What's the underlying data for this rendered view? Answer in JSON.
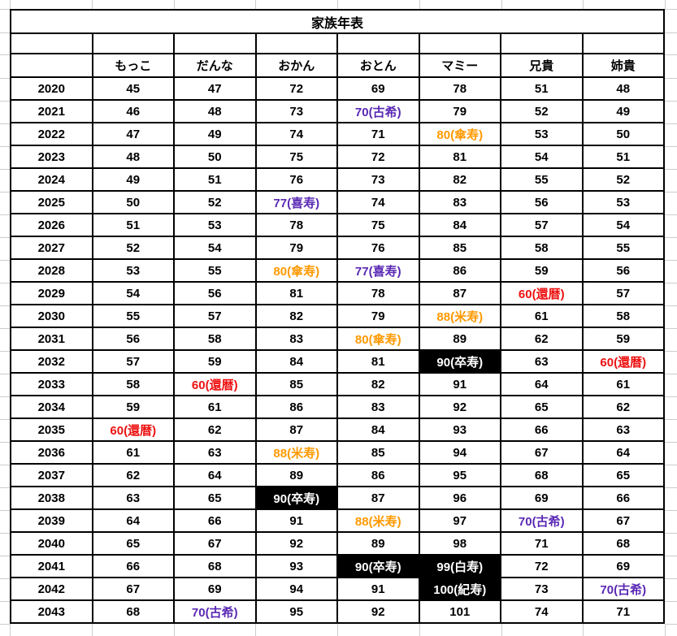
{
  "title": "家族年表",
  "columns": [
    "もっこ",
    "だんな",
    "おかん",
    "おとん",
    "マミー",
    "兄貴",
    "姉貴"
  ],
  "rows": [
    {
      "year": "2020",
      "cells": [
        "45",
        "47",
        "72",
        "69",
        "78",
        "51",
        "48"
      ]
    },
    {
      "year": "2021",
      "cells": [
        "46",
        "48",
        "73",
        {
          "t": "70(古希)",
          "s": "purple"
        },
        "79",
        "52",
        "49"
      ]
    },
    {
      "year": "2022",
      "cells": [
        "47",
        "49",
        "74",
        "71",
        {
          "t": "80(傘寿)",
          "s": "orange"
        },
        "53",
        "50"
      ]
    },
    {
      "year": "2023",
      "cells": [
        "48",
        "50",
        "75",
        "72",
        "81",
        "54",
        "51"
      ]
    },
    {
      "year": "2024",
      "cells": [
        "49",
        "51",
        "76",
        "73",
        "82",
        "55",
        "52"
      ]
    },
    {
      "year": "2025",
      "cells": [
        "50",
        "52",
        {
          "t": "77(喜寿)",
          "s": "purple"
        },
        "74",
        "83",
        "56",
        "53"
      ]
    },
    {
      "year": "2026",
      "cells": [
        "51",
        "53",
        "78",
        "75",
        "84",
        "57",
        "54"
      ]
    },
    {
      "year": "2027",
      "cells": [
        "52",
        "54",
        "79",
        "76",
        "85",
        "58",
        "55"
      ]
    },
    {
      "year": "2028",
      "cells": [
        "53",
        "55",
        {
          "t": "80(傘寿)",
          "s": "orange"
        },
        {
          "t": "77(喜寿)",
          "s": "purple"
        },
        "86",
        "59",
        "56"
      ]
    },
    {
      "year": "2029",
      "cells": [
        "54",
        "56",
        "81",
        "78",
        "87",
        {
          "t": "60(還暦)",
          "s": "red"
        },
        "57"
      ]
    },
    {
      "year": "2030",
      "cells": [
        "55",
        "57",
        "82",
        "79",
        {
          "t": "88(米寿)",
          "s": "orange"
        },
        "61",
        "58"
      ]
    },
    {
      "year": "2031",
      "cells": [
        "56",
        "58",
        "83",
        {
          "t": "80(傘寿)",
          "s": "orange"
        },
        "89",
        "62",
        "59"
      ]
    },
    {
      "year": "2032",
      "cells": [
        "57",
        "59",
        "84",
        "81",
        {
          "t": "90(卒寿)",
          "s": "inverse"
        },
        "63",
        {
          "t": "60(還暦)",
          "s": "red"
        }
      ]
    },
    {
      "year": "2033",
      "cells": [
        "58",
        {
          "t": "60(還暦)",
          "s": "red"
        },
        "85",
        "82",
        "91",
        "64",
        "61"
      ]
    },
    {
      "year": "2034",
      "cells": [
        "59",
        "61",
        "86",
        "83",
        "92",
        "65",
        "62"
      ]
    },
    {
      "year": "2035",
      "cells": [
        {
          "t": "60(還暦)",
          "s": "red"
        },
        "62",
        "87",
        "84",
        "93",
        "66",
        "63"
      ]
    },
    {
      "year": "2036",
      "cells": [
        "61",
        "63",
        {
          "t": "88(米寿)",
          "s": "orange"
        },
        "85",
        "94",
        "67",
        "64"
      ]
    },
    {
      "year": "2037",
      "cells": [
        "62",
        "64",
        "89",
        "86",
        "95",
        "68",
        "65"
      ]
    },
    {
      "year": "2038",
      "cells": [
        "63",
        "65",
        {
          "t": "90(卒寿)",
          "s": "inverse"
        },
        "87",
        "96",
        "69",
        "66"
      ]
    },
    {
      "year": "2039",
      "cells": [
        "64",
        "66",
        "91",
        {
          "t": "88(米寿)",
          "s": "orange"
        },
        "97",
        {
          "t": "70(古希)",
          "s": "purple"
        },
        "67"
      ]
    },
    {
      "year": "2040",
      "cells": [
        "65",
        "67",
        "92",
        "89",
        "98",
        "71",
        "68"
      ]
    },
    {
      "year": "2041",
      "cells": [
        "66",
        "68",
        "93",
        {
          "t": "90(卒寿)",
          "s": "inverse"
        },
        {
          "t": "99(白寿)",
          "s": "inverse"
        },
        "72",
        "69"
      ]
    },
    {
      "year": "2042",
      "cells": [
        "67",
        "69",
        "94",
        "91",
        {
          "t": "100(紀寿)",
          "s": "inverse"
        },
        "73",
        {
          "t": "70(古希)",
          "s": "purple"
        }
      ]
    },
    {
      "year": "2043",
      "cells": [
        "68",
        {
          "t": "70(古希)",
          "s": "purple"
        },
        "95",
        "92",
        "101",
        "74",
        "71"
      ]
    }
  ],
  "colors": {
    "purple": "#5a28b4",
    "orange": "#ff9900",
    "red": "#ee1111",
    "milestone_bg": "#000000",
    "milestone_fg": "#ffffff",
    "grid": "#cccccc",
    "border": "#000000"
  }
}
